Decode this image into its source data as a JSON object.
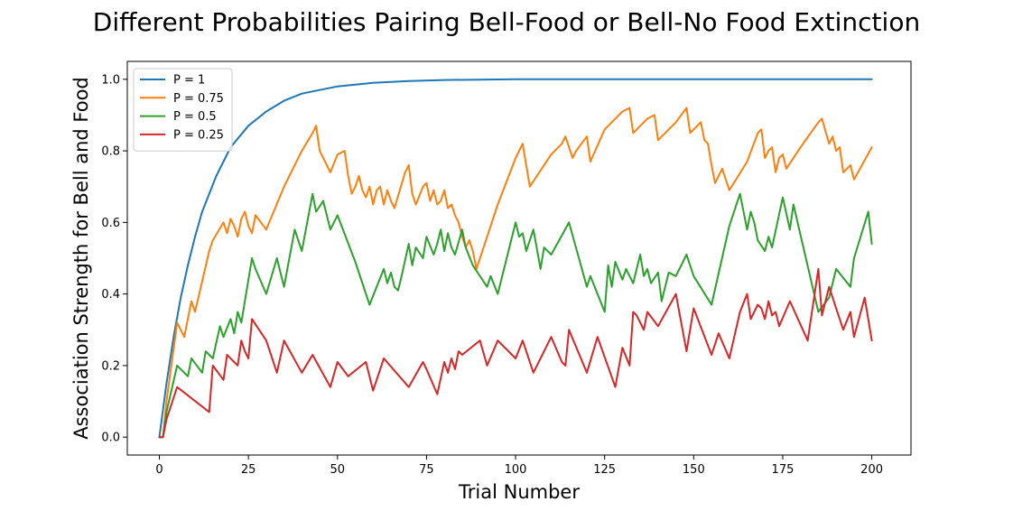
{
  "chart_data": {
    "type": "line",
    "title": "Different Probabilities Pairing Bell-Food or Bell-No Food Extinction",
    "xlabel": "Trial Number",
    "ylabel": "Association Strength for Bell and Food",
    "xlim": [
      -9,
      211
    ],
    "ylim": [
      -0.05,
      1.05
    ],
    "xticks": [
      0,
      25,
      50,
      75,
      100,
      125,
      150,
      175,
      200
    ],
    "yticks": [
      0.0,
      0.2,
      0.4,
      0.6,
      0.8,
      1.0
    ],
    "xtick_labels": [
      "0",
      "25",
      "50",
      "75",
      "100",
      "125",
      "150",
      "175",
      "200"
    ],
    "ytick_labels": [
      "0.0",
      "0.2",
      "0.4",
      "0.6",
      "0.8",
      "1.0"
    ],
    "grid": false,
    "legend_position": "top-left",
    "series": [
      {
        "name": "P = 1",
        "color": "#1f77b4",
        "x": [
          0,
          2,
          4,
          6,
          8,
          10,
          12,
          14,
          16,
          18,
          20,
          25,
          30,
          35,
          40,
          45,
          50,
          55,
          60,
          70,
          80,
          90,
          100,
          125,
          150,
          175,
          200
        ],
        "y": [
          0.0,
          0.15,
          0.28,
          0.39,
          0.48,
          0.56,
          0.63,
          0.68,
          0.73,
          0.77,
          0.81,
          0.87,
          0.91,
          0.94,
          0.96,
          0.97,
          0.98,
          0.985,
          0.99,
          0.995,
          0.998,
          0.999,
          1.0,
          1.0,
          1.0,
          1.0,
          1.0
        ]
      },
      {
        "name": "P = 0.75",
        "color": "#ff7f0e",
        "x": [
          0,
          1,
          2,
          5,
          7,
          9,
          10,
          14,
          15,
          18,
          19,
          20,
          21,
          22,
          23,
          24,
          25,
          26,
          27,
          30,
          35,
          40,
          43,
          44,
          45,
          48,
          50,
          52,
          53,
          54,
          55,
          56,
          57,
          58,
          59,
          60,
          61,
          62,
          63,
          64,
          65,
          66,
          69,
          70,
          71,
          72,
          74,
          75,
          76,
          77,
          78,
          79,
          80,
          81,
          82,
          83,
          84,
          85,
          86,
          87,
          88,
          89,
          95,
          100,
          102,
          104,
          110,
          113,
          114,
          116,
          117,
          120,
          121,
          125,
          130,
          132,
          133,
          137,
          139,
          140,
          145,
          148,
          149,
          151,
          152,
          153,
          154,
          155,
          156,
          157,
          158,
          160,
          165,
          168,
          169,
          170,
          171,
          172,
          173,
          174,
          175,
          176,
          180,
          185,
          186,
          188,
          189,
          190,
          191,
          192,
          194,
          195,
          200
        ],
        "y": [
          0.0,
          0.0,
          0.1,
          0.32,
          0.28,
          0.38,
          0.35,
          0.52,
          0.55,
          0.6,
          0.57,
          0.61,
          0.59,
          0.56,
          0.61,
          0.63,
          0.59,
          0.57,
          0.62,
          0.58,
          0.7,
          0.8,
          0.85,
          0.87,
          0.8,
          0.74,
          0.79,
          0.8,
          0.73,
          0.68,
          0.7,
          0.73,
          0.69,
          0.67,
          0.7,
          0.65,
          0.69,
          0.7,
          0.65,
          0.69,
          0.66,
          0.64,
          0.74,
          0.76,
          0.68,
          0.65,
          0.7,
          0.71,
          0.66,
          0.69,
          0.65,
          0.66,
          0.69,
          0.64,
          0.65,
          0.62,
          0.6,
          0.56,
          0.53,
          0.55,
          0.52,
          0.47,
          0.65,
          0.78,
          0.82,
          0.7,
          0.79,
          0.82,
          0.84,
          0.78,
          0.8,
          0.84,
          0.77,
          0.86,
          0.91,
          0.92,
          0.85,
          0.89,
          0.9,
          0.83,
          0.88,
          0.92,
          0.85,
          0.87,
          0.88,
          0.83,
          0.82,
          0.76,
          0.71,
          0.73,
          0.75,
          0.69,
          0.77,
          0.85,
          0.86,
          0.78,
          0.8,
          0.81,
          0.74,
          0.78,
          0.79,
          0.75,
          0.81,
          0.88,
          0.89,
          0.82,
          0.84,
          0.8,
          0.81,
          0.74,
          0.76,
          0.72,
          0.81
        ]
      },
      {
        "name": "P = 0.5",
        "color": "#2ca02c",
        "x": [
          0,
          1,
          2,
          5,
          8,
          9,
          12,
          13,
          15,
          17,
          18,
          20,
          21,
          22,
          23,
          24,
          26,
          27,
          30,
          33,
          35,
          38,
          40,
          43,
          44,
          46,
          48,
          50,
          55,
          59,
          63,
          64,
          65,
          66,
          67,
          68,
          70,
          71,
          72,
          74,
          75,
          77,
          78,
          79,
          80,
          81,
          82,
          83,
          85,
          86,
          88,
          90,
          92,
          93,
          95,
          100,
          101,
          102,
          103,
          104,
          105,
          107,
          108,
          110,
          115,
          120,
          121,
          125,
          126,
          127,
          128,
          130,
          131,
          133,
          135,
          136,
          137,
          138,
          140,
          141,
          143,
          145,
          148,
          150,
          155,
          160,
          163,
          165,
          166,
          167,
          168,
          170,
          171,
          172,
          175,
          177,
          178,
          185,
          188,
          190,
          194,
          195,
          199,
          200
        ],
        "y": [
          0.0,
          0.0,
          0.07,
          0.2,
          0.17,
          0.22,
          0.18,
          0.24,
          0.22,
          0.31,
          0.28,
          0.33,
          0.29,
          0.35,
          0.32,
          0.38,
          0.5,
          0.47,
          0.4,
          0.5,
          0.42,
          0.58,
          0.52,
          0.68,
          0.63,
          0.66,
          0.58,
          0.62,
          0.49,
          0.37,
          0.47,
          0.43,
          0.46,
          0.42,
          0.41,
          0.45,
          0.54,
          0.48,
          0.53,
          0.5,
          0.56,
          0.51,
          0.54,
          0.58,
          0.52,
          0.57,
          0.53,
          0.51,
          0.58,
          0.53,
          0.48,
          0.45,
          0.42,
          0.45,
          0.4,
          0.6,
          0.56,
          0.57,
          0.52,
          0.55,
          0.58,
          0.47,
          0.53,
          0.51,
          0.6,
          0.42,
          0.45,
          0.35,
          0.48,
          0.42,
          0.49,
          0.44,
          0.47,
          0.43,
          0.51,
          0.45,
          0.47,
          0.43,
          0.46,
          0.38,
          0.46,
          0.45,
          0.51,
          0.45,
          0.37,
          0.59,
          0.68,
          0.58,
          0.63,
          0.6,
          0.55,
          0.52,
          0.56,
          0.53,
          0.67,
          0.58,
          0.65,
          0.35,
          0.39,
          0.47,
          0.42,
          0.5,
          0.63,
          0.54
        ]
      },
      {
        "name": "P = 0.25",
        "color": "#d62728",
        "x": [
          0,
          1,
          2,
          5,
          14,
          15,
          18,
          19,
          22,
          23,
          24,
          25,
          26,
          30,
          33,
          35,
          40,
          43,
          48,
          50,
          53,
          58,
          60,
          63,
          70,
          74,
          75,
          78,
          80,
          81,
          82,
          83,
          84,
          85,
          90,
          92,
          95,
          100,
          102,
          105,
          110,
          113,
          114,
          115,
          120,
          123,
          128,
          130,
          132,
          133,
          134,
          136,
          137,
          140,
          145,
          148,
          150,
          155,
          157,
          160,
          163,
          165,
          166,
          168,
          169,
          170,
          171,
          172,
          173,
          174,
          177,
          182,
          185,
          186,
          188,
          190,
          192,
          194,
          195,
          198,
          200
        ],
        "y": [
          0.0,
          0.0,
          0.05,
          0.14,
          0.07,
          0.2,
          0.16,
          0.23,
          0.2,
          0.27,
          0.24,
          0.22,
          0.33,
          0.27,
          0.18,
          0.27,
          0.18,
          0.23,
          0.14,
          0.21,
          0.17,
          0.21,
          0.13,
          0.22,
          0.14,
          0.21,
          0.19,
          0.12,
          0.21,
          0.18,
          0.22,
          0.19,
          0.24,
          0.23,
          0.27,
          0.2,
          0.27,
          0.22,
          0.27,
          0.18,
          0.28,
          0.21,
          0.2,
          0.3,
          0.18,
          0.28,
          0.14,
          0.25,
          0.2,
          0.35,
          0.34,
          0.3,
          0.35,
          0.31,
          0.4,
          0.24,
          0.36,
          0.23,
          0.29,
          0.22,
          0.35,
          0.4,
          0.33,
          0.37,
          0.36,
          0.33,
          0.38,
          0.34,
          0.35,
          0.31,
          0.38,
          0.27,
          0.47,
          0.34,
          0.42,
          0.36,
          0.3,
          0.35,
          0.28,
          0.39,
          0.27
        ]
      }
    ]
  }
}
